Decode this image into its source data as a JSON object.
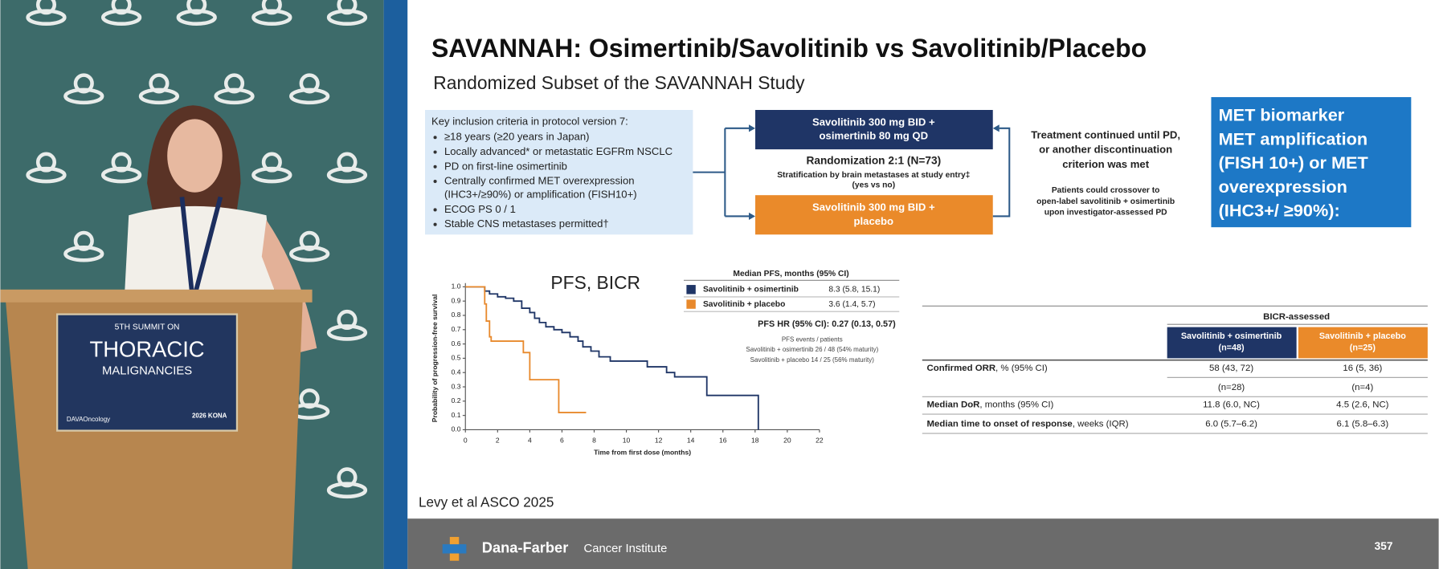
{
  "speaker_panel": {
    "sign": [
      "5TH SUMMIT ON",
      "THORACIC",
      "MALIGNANCIES",
      "DAVAOncology",
      "2026 KONA"
    ]
  },
  "slide": {
    "title": "SAVANNAH: Osimertinib/Savolitinib vs Savolitinib/Placebo",
    "subtitle": "Randomized Subset of the SAVANNAH Study",
    "inclusion": {
      "heading": "Key inclusion criteria in protocol version 7:",
      "items": [
        [
          "≥18 years (≥20 years in Japan)"
        ],
        [
          "Locally advanced* or metastatic EGFRm NSCLC"
        ],
        [
          "PD on first-line osimertinib"
        ],
        [
          "Centrally confirmed MET overexpression",
          "(IHC3+/≥90%) or amplification (FISH10+)"
        ],
        [
          "ECOG PS 0 / 1"
        ],
        [
          "Stable CNS metastases permitted†"
        ]
      ]
    },
    "arm_a": [
      "Savolitinib 300 mg BID +",
      "osimertinib 80 mg QD"
    ],
    "arm_b": [
      "Savolitinib 300 mg BID +",
      "placebo"
    ],
    "randomization": "Randomization 2:1 (N=73)",
    "stratification": [
      "Stratification by brain metastases at study entry‡",
      "(yes vs no)"
    ],
    "treatment_note": [
      "Treatment continued until PD,",
      "or another discontinuation",
      "criterion was met"
    ],
    "crossover_note": [
      "Patients could crossover to",
      "open-label savolitinib + osimertinib",
      "upon investigator-assessed PD"
    ],
    "met_box": [
      "MET biomarker",
      "MET amplification",
      "(FISH 10+) or MET",
      "overexpression",
      "(IHC3+/ ≥90%):"
    ],
    "table": {
      "group": "BICR-assessed",
      "columns": [
        [
          "Savolitinib + osimertinib",
          "(n=48)"
        ],
        [
          "Savolitinib + placebo",
          "(n=25)"
        ]
      ],
      "rows": [
        {
          "label_bold": "Confirmed ORR",
          "label_rest": ", % (95% CI)",
          "cells": [
            "58 (43, 72)",
            "16 (5, 36)"
          ]
        },
        {
          "label_bold": "",
          "label_rest": "",
          "cells": [
            "(n=28)",
            "(n=4)"
          ]
        },
        {
          "label_bold": "Median DoR",
          "label_rest": ", months (95% CI)",
          "cells": [
            "11.8 (6.0, NC)",
            "4.5 (2.6, NC)"
          ]
        },
        {
          "label_bold": "Median time to onset of response",
          "label_rest": ", weeks (IQR)",
          "cells": [
            "6.0 (5.7–6.2)",
            "6.1 (5.8–6.3)"
          ]
        }
      ]
    },
    "citation": "Levy et al ASCO 2025",
    "footer": {
      "brand": "Dana-Farber",
      "institute": "Cancer Institute",
      "page": "357"
    }
  },
  "chart_data": {
    "type": "step",
    "title": "PFS, BICR",
    "x_label": "Time from first dose (months)",
    "y_label": "Probability of progression-free survival",
    "xlim": [
      0,
      22
    ],
    "xticks": [
      0,
      2,
      4,
      6,
      8,
      10,
      12,
      14,
      16,
      18,
      20,
      22
    ],
    "ylim": [
      0,
      1
    ],
    "yticks": [
      {
        "value": 0,
        "label": "0.0"
      },
      {
        "value": 0.1,
        "label": "0.1"
      },
      {
        "value": 0.2,
        "label": "0.2"
      },
      {
        "value": 0.3,
        "label": "0.3"
      },
      {
        "value": 0.4,
        "label": "0.4"
      },
      {
        "value": 0.5,
        "label": "0.5"
      },
      {
        "value": 0.6,
        "label": "0.6"
      },
      {
        "value": 0.7,
        "label": "0.7"
      },
      {
        "value": 0.8,
        "label": "0.8"
      },
      {
        "value": 0.9,
        "label": "0.9"
      },
      {
        "value": 1,
        "label": "1.0"
      }
    ],
    "median_header": "Median PFS, months (95% CI)",
    "hr": "PFS HR (95% CI): 0.27 (0.13, 0.57)",
    "events": [
      "PFS events / patients",
      "Savolitinib + osimertinib 26 / 48 (54% maturity)",
      "Savolitinib + placebo 14 / 25 (56% maturity)"
    ],
    "series": [
      {
        "name": "Savolitinib + osimertinib",
        "median": "8.3 (5.8, 15.1)",
        "color": "#1f3566",
        "x": [
          0,
          1.2,
          1.5,
          2,
          2.5,
          3,
          3.5,
          4,
          4.3,
          4.6,
          5,
          5.5,
          6,
          6.5,
          7,
          7.3,
          7.8,
          8.3,
          9,
          11.3,
          12.5,
          13,
          15,
          18.2
        ],
        "values": [
          1,
          0.97,
          0.95,
          0.93,
          0.92,
          0.9,
          0.85,
          0.82,
          0.78,
          0.75,
          0.72,
          0.7,
          0.68,
          0.65,
          0.62,
          0.58,
          0.55,
          0.51,
          0.48,
          0.44,
          0.4,
          0.37,
          0.24,
          0
        ]
      },
      {
        "name": "Savolitinib + placebo",
        "median": "3.6 (1.4, 5.7)",
        "color": "#e8892c",
        "x": [
          0,
          1.2,
          1.3,
          1.5,
          1.6,
          3.6,
          4,
          5.8,
          7.5
        ],
        "values": [
          1,
          0.88,
          0.76,
          0.65,
          0.62,
          0.54,
          0.35,
          0.12,
          0.12
        ]
      }
    ]
  }
}
